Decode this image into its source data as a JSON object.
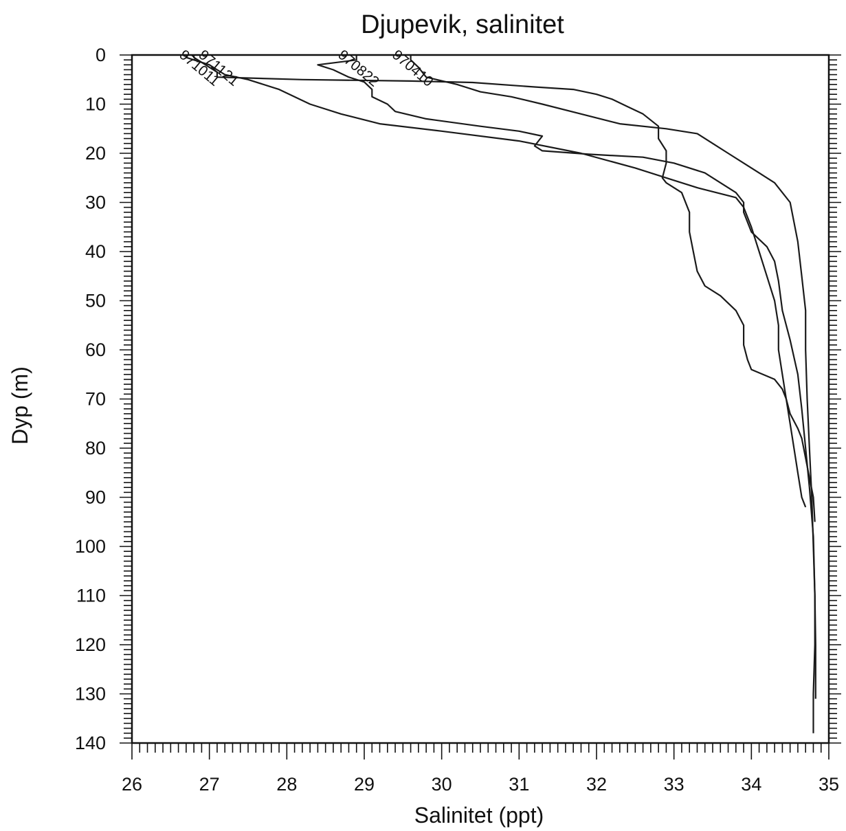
{
  "chart_data": {
    "type": "line",
    "title": "Djupevik, salinitet",
    "xlabel": "Salinitet (ppt)",
    "ylabel": "Dyp (m)",
    "xlim": [
      26,
      35
    ],
    "ylim": [
      0,
      140
    ],
    "y_inverted": true,
    "x_ticks": [
      26,
      27,
      28,
      29,
      30,
      31,
      32,
      33,
      34,
      35
    ],
    "y_ticks": [
      0,
      10,
      20,
      30,
      40,
      50,
      60,
      70,
      80,
      90,
      100,
      110,
      120,
      130,
      140
    ],
    "grid": false,
    "legend": "none",
    "series": [
      {
        "name": "970822",
        "points": [
          [
            28.9,
            0.5
          ],
          [
            28.9,
            1.0
          ],
          [
            28.4,
            2.0
          ],
          [
            28.6,
            3.0
          ],
          [
            28.8,
            4.5
          ],
          [
            29.0,
            5.5
          ],
          [
            29.1,
            7.0
          ],
          [
            29.1,
            8.5
          ],
          [
            29.3,
            10.0
          ],
          [
            29.4,
            11.5
          ],
          [
            29.8,
            13.0
          ],
          [
            30.5,
            14.5
          ],
          [
            31.0,
            15.5
          ],
          [
            31.3,
            16.5
          ],
          [
            31.2,
            18.5
          ],
          [
            31.3,
            19.5
          ],
          [
            31.9,
            20.2
          ],
          [
            32.6,
            20.8
          ],
          [
            33.0,
            22.0
          ],
          [
            33.4,
            24.0
          ],
          [
            33.6,
            26.0
          ],
          [
            33.8,
            28.0
          ],
          [
            33.9,
            30.0
          ],
          [
            33.9,
            32.0
          ],
          [
            34.0,
            36.0
          ],
          [
            34.2,
            39.0
          ],
          [
            34.3,
            42.0
          ],
          [
            34.35,
            46.0
          ],
          [
            34.4,
            52.0
          ],
          [
            34.5,
            58.0
          ],
          [
            34.6,
            65.0
          ],
          [
            34.65,
            72.0
          ],
          [
            34.7,
            80.0
          ],
          [
            34.75,
            88.0
          ],
          [
            34.8,
            98.0
          ],
          [
            34.82,
            110.0
          ],
          [
            34.83,
            120.0
          ],
          [
            34.83,
            131.0
          ]
        ]
      },
      {
        "name": "970410",
        "points": [
          [
            29.6,
            1.0
          ],
          [
            29.7,
            2.5
          ],
          [
            29.8,
            4.5
          ],
          [
            30.2,
            6.0
          ],
          [
            30.5,
            7.5
          ],
          [
            30.9,
            8.5
          ],
          [
            31.3,
            10.0
          ],
          [
            31.8,
            12.0
          ],
          [
            32.3,
            14.0
          ],
          [
            32.9,
            15.0
          ],
          [
            33.3,
            16.0
          ],
          [
            33.5,
            18.0
          ],
          [
            33.7,
            20.0
          ],
          [
            33.9,
            22.0
          ],
          [
            34.1,
            24.0
          ],
          [
            34.3,
            26.0
          ],
          [
            34.4,
            28.0
          ],
          [
            34.5,
            30.0
          ],
          [
            34.55,
            34.0
          ],
          [
            34.6,
            38.0
          ],
          [
            34.65,
            45.0
          ],
          [
            34.7,
            52.0
          ],
          [
            34.7,
            60.0
          ],
          [
            34.72,
            70.0
          ],
          [
            34.75,
            80.0
          ],
          [
            34.78,
            90.0
          ],
          [
            34.8,
            100.0
          ],
          [
            34.82,
            110.0
          ],
          [
            34.82,
            120.0
          ],
          [
            34.8,
            130.0
          ],
          [
            34.8,
            138.0
          ]
        ]
      },
      {
        "name": "971121",
        "points": [
          [
            26.8,
            0.5
          ],
          [
            26.9,
            1.5
          ],
          [
            27.0,
            2.5
          ],
          [
            27.1,
            3.5
          ],
          [
            27.1,
            4.5
          ],
          [
            28.2,
            5.0
          ],
          [
            29.6,
            5.3
          ],
          [
            30.4,
            5.6
          ],
          [
            31.2,
            6.5
          ],
          [
            31.7,
            7.0
          ],
          [
            32.0,
            8.0
          ],
          [
            32.2,
            9.0
          ],
          [
            32.4,
            10.5
          ],
          [
            32.6,
            12.0
          ],
          [
            32.8,
            14.5
          ],
          [
            32.8,
            17.0
          ],
          [
            32.9,
            19.5
          ],
          [
            32.9,
            22.0
          ],
          [
            32.85,
            25.0
          ],
          [
            32.9,
            26.0
          ],
          [
            33.1,
            28.0
          ],
          [
            33.2,
            32.0
          ],
          [
            33.2,
            36.0
          ],
          [
            33.25,
            40.0
          ],
          [
            33.3,
            44.0
          ],
          [
            33.4,
            47.0
          ],
          [
            33.6,
            49.0
          ],
          [
            33.8,
            52.0
          ],
          [
            33.9,
            55.0
          ],
          [
            33.9,
            59.0
          ],
          [
            33.95,
            62.0
          ],
          [
            34.0,
            64.0
          ],
          [
            34.3,
            66.0
          ],
          [
            34.4,
            68.0
          ],
          [
            34.45,
            70.0
          ],
          [
            34.5,
            73.0
          ],
          [
            34.6,
            76.0
          ],
          [
            34.65,
            78.0
          ],
          [
            34.7,
            82.0
          ],
          [
            34.75,
            86.0
          ],
          [
            34.8,
            90.0
          ],
          [
            34.82,
            95.0
          ]
        ]
      },
      {
        "name": "971011",
        "points": [
          [
            26.7,
            0.5
          ],
          [
            26.8,
            1.0
          ],
          [
            27.0,
            2.0
          ],
          [
            27.1,
            3.0
          ],
          [
            27.2,
            4.0
          ],
          [
            27.5,
            5.0
          ],
          [
            27.9,
            7.0
          ],
          [
            28.3,
            10.0
          ],
          [
            28.7,
            12.0
          ],
          [
            29.2,
            14.0
          ],
          [
            30.0,
            15.5
          ],
          [
            31.0,
            17.5
          ],
          [
            31.8,
            20.0
          ],
          [
            32.5,
            23.0
          ],
          [
            32.9,
            25.0
          ],
          [
            33.3,
            27.0
          ],
          [
            33.8,
            29.0
          ],
          [
            33.9,
            31.0
          ],
          [
            34.0,
            35.0
          ],
          [
            34.1,
            40.0
          ],
          [
            34.2,
            45.0
          ],
          [
            34.3,
            50.0
          ],
          [
            34.35,
            55.0
          ],
          [
            34.35,
            60.0
          ],
          [
            34.4,
            65.0
          ],
          [
            34.45,
            70.0
          ],
          [
            34.5,
            75.0
          ],
          [
            34.55,
            80.0
          ],
          [
            34.6,
            85.0
          ],
          [
            34.65,
            90.0
          ],
          [
            34.7,
            92.0
          ]
        ]
      }
    ],
    "labels": [
      {
        "text": "971011",
        "x": 26.6,
        "y": 0
      },
      {
        "text": "971121",
        "x": 26.85,
        "y": 0
      },
      {
        "text": "970822",
        "x": 28.65,
        "y": 0
      },
      {
        "text": "970410",
        "x": 29.35,
        "y": 0
      }
    ]
  }
}
